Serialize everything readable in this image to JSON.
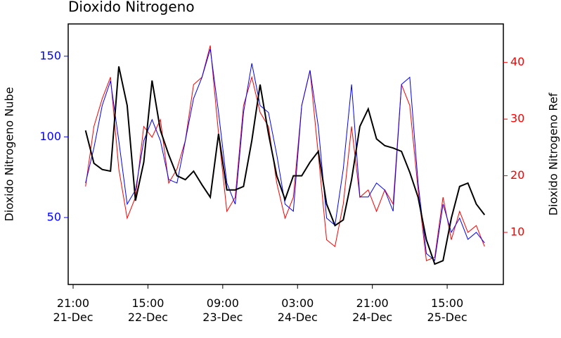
{
  "chart_data": {
    "type": "line",
    "title": "Dioxido Nitrogeno",
    "y_label": "Dioxido Nitrogeno Nube",
    "y2_label": "Dioxido Nitrogeno Ref",
    "x": [
      "22-Dec 00:00",
      "22-Dec 02:00",
      "22-Dec 04:00",
      "22-Dec 06:00",
      "22-Dec 08:00",
      "22-Dec 10:00",
      "22-Dec 12:00",
      "22-Dec 14:00",
      "22-Dec 16:00",
      "22-Dec 18:00",
      "22-Dec 20:00",
      "22-Dec 22:00",
      "23-Dec 00:00",
      "23-Dec 02:00",
      "23-Dec 04:00",
      "23-Dec 06:00",
      "23-Dec 08:00",
      "23-Dec 10:00",
      "23-Dec 12:00",
      "23-Dec 14:00",
      "23-Dec 16:00",
      "23-Dec 18:00",
      "23-Dec 20:00",
      "23-Dec 22:00",
      "24-Dec 00:00",
      "24-Dec 02:00",
      "24-Dec 04:00",
      "24-Dec 06:00",
      "24-Dec 08:00",
      "24-Dec 10:00",
      "24-Dec 12:00",
      "24-Dec 14:00",
      "24-Dec 16:00",
      "24-Dec 18:00",
      "24-Dec 20:00",
      "24-Dec 22:00",
      "25-Dec 00:00",
      "25-Dec 02:00",
      "25-Dec 04:00",
      "25-Dec 06:00",
      "25-Dec 08:00",
      "25-Dec 10:00",
      "25-Dec 12:00",
      "25-Dec 14:00",
      "25-Dec 16:00",
      "25-Dec 18:00",
      "25-Dec 20:00",
      "25-Dec 22:00",
      "26-Dec 00:00"
    ],
    "series": [
      {
        "color": "#ff0000",
        "axis": "y2",
        "values": [
          18.1,
          28.7,
          33.6,
          37.4,
          21.2,
          12.5,
          16.2,
          28.7,
          26.8,
          29.9,
          18.7,
          21.2,
          26.2,
          36.1,
          37.4,
          43.0,
          27.4,
          13.7,
          16.2,
          32.4,
          37.4,
          31.2,
          28.7,
          18.7,
          12.5,
          16.2,
          32.4,
          38.6,
          23.7,
          8.7,
          7.5,
          15,
          28.7,
          16.2,
          17.5,
          13.7,
          17.5,
          15,
          36.1,
          32.4,
          17.5,
          5,
          5.6,
          16.2,
          8.7,
          13.7,
          10,
          11.2,
          7.5
        ]
      },
      {
        "color": "#0000ff",
        "values": [
          71.4,
          93.2,
          119.4,
          134.7,
          97.6,
          58.3,
          67,
          97.6,
          110.7,
          97.6,
          73.6,
          71.4,
          97.6,
          123.8,
          136.9,
          154.4,
          115.1,
          71.4,
          58.3,
          115.1,
          145.6,
          119.4,
          115.1,
          88.9,
          58.3,
          53.9,
          119.4,
          141.3,
          106.3,
          49.6,
          45.2,
          80.1,
          132.5,
          62.7,
          62.7,
          71.4,
          67,
          53.9,
          132.5,
          136.9,
          71.4,
          27.7,
          23.4,
          58.3,
          40.8,
          49.6,
          36.5,
          40.8,
          34.3
        ]
      },
      {
        "color": "#000000",
        "axis": "y2",
        "values": [
          28.0,
          22.2,
          21.1,
          20.8,
          39.3,
          32.4,
          15.6,
          22.4,
          36.8,
          28,
          23.7,
          20,
          19.3,
          20.8,
          18.4,
          16.2,
          27.4,
          17.5,
          17.5,
          18.1,
          26.2,
          36.1,
          27.4,
          20,
          15.8,
          20,
          20,
          22.4,
          24.3,
          15,
          11.2,
          12.2,
          19.3,
          28.7,
          31.8,
          26.5,
          25.3,
          24.9,
          24.3,
          20.6,
          16.2,
          8.7,
          4.4,
          5,
          12.5,
          18.1,
          18.7,
          15,
          13.1
        ]
      }
    ],
    "xlim": [
      "21-Dec 19:49",
      "26-Dec 04:31"
    ],
    "xticks": [
      {
        "value": "21-Dec 21:00",
        "label": "21:00\n21-Dec"
      },
      {
        "value": "22-Dec 15:00",
        "label": "15:00\n22-Dec"
      },
      {
        "value": "23-Dec 09:00",
        "label": "09:00\n23-Dec"
      },
      {
        "value": "24-Dec 03:00",
        "label": "03:00\n24-Dec"
      },
      {
        "value": "24-Dec 21:00",
        "label": "21:00\n24-Dec"
      },
      {
        "value": "25-Dec 15:00",
        "label": "15:00\n25-Dec"
      }
    ],
    "ylim": [
      8.5,
      170
    ],
    "yticks": [
      50,
      100,
      150
    ],
    "y_color": "#0000ff",
    "y2lim": [
      0.8,
      46.8
    ],
    "y2ticks": [
      10,
      20,
      30,
      40
    ],
    "y2_color": "#ff0000"
  }
}
